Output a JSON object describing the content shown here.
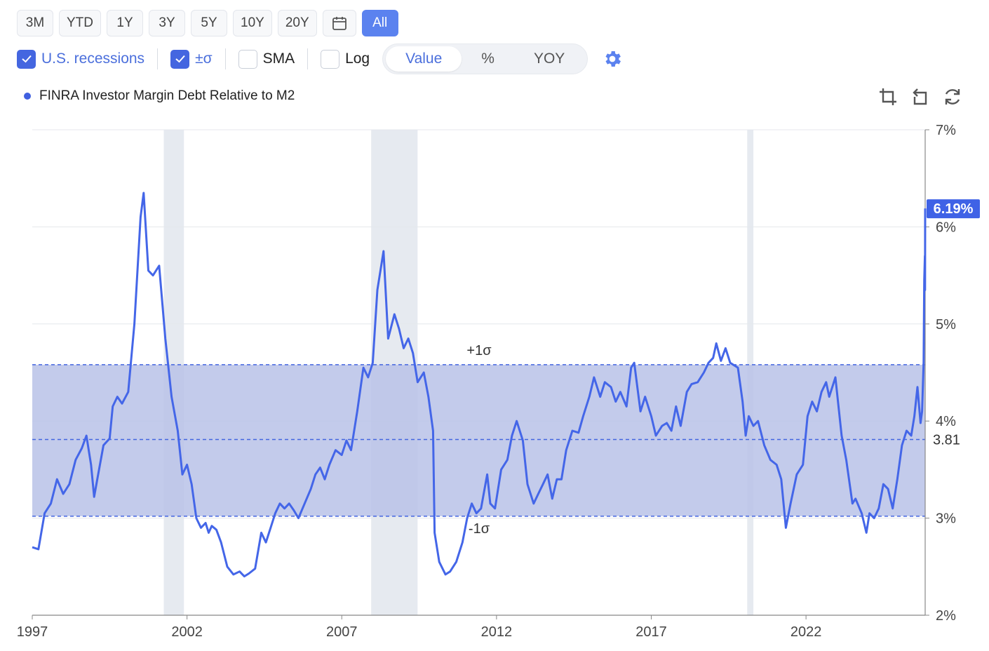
{
  "toolbar": {
    "ranges": [
      "3M",
      "YTD",
      "1Y",
      "3Y",
      "5Y",
      "10Y",
      "20Y"
    ],
    "calendar_icon": "calendar-icon",
    "all_label": "All"
  },
  "options": {
    "recessions_label": "U.S. recessions",
    "sigma_label": "±σ",
    "sma_label": "SMA",
    "log_label": "Log",
    "seg": [
      "Value",
      "%",
      "YOY"
    ],
    "gear_icon": "gear-icon"
  },
  "legend": {
    "label": "FINRA Investor Margin Debt Relative to M2",
    "color": "#4060e0"
  },
  "tools": [
    "crop-icon",
    "undo-icon",
    "refresh-icon"
  ],
  "chart_data": {
    "type": "line",
    "series": [
      {
        "name": "FINRA Investor Margin Debt Relative to M2",
        "color": "#4466e8"
      }
    ],
    "xlim": [
      1997.0,
      2025.85
    ],
    "ylim": [
      2,
      7
    ],
    "x_ticks": [
      "1997",
      "2002",
      "2007",
      "2012",
      "2017",
      "2022"
    ],
    "y_ticks": [
      "2%",
      "3%",
      "4%",
      "5%",
      "6%",
      "7%"
    ],
    "mean": 3.81,
    "mean_label": "3.81",
    "plus_sigma": 4.58,
    "minus_sigma": 3.02,
    "plus_sigma_label": "+1σ",
    "minus_sigma_label": "-1σ",
    "last_value_label": "6.19%",
    "recessions": [
      [
        2001.25,
        2001.9
      ],
      [
        2007.95,
        2009.45
      ],
      [
        2020.1,
        2020.3
      ]
    ],
    "points": [
      [
        1997.0,
        2.7
      ],
      [
        1997.2,
        2.68
      ],
      [
        1997.4,
        3.05
      ],
      [
        1997.6,
        3.15
      ],
      [
        1997.8,
        3.4
      ],
      [
        1998.0,
        3.25
      ],
      [
        1998.2,
        3.35
      ],
      [
        1998.4,
        3.6
      ],
      [
        1998.6,
        3.72
      ],
      [
        1998.75,
        3.85
      ],
      [
        1998.9,
        3.55
      ],
      [
        1999.0,
        3.22
      ],
      [
        1999.1,
        3.4
      ],
      [
        1999.3,
        3.75
      ],
      [
        1999.5,
        3.82
      ],
      [
        1999.6,
        4.15
      ],
      [
        1999.75,
        4.25
      ],
      [
        1999.9,
        4.18
      ],
      [
        2000.1,
        4.3
      ],
      [
        2000.3,
        5.0
      ],
      [
        2000.5,
        6.1
      ],
      [
        2000.6,
        6.35
      ],
      [
        2000.75,
        5.55
      ],
      [
        2000.9,
        5.5
      ],
      [
        2001.0,
        5.55
      ],
      [
        2001.1,
        5.6
      ],
      [
        2001.3,
        4.85
      ],
      [
        2001.5,
        4.25
      ],
      [
        2001.7,
        3.9
      ],
      [
        2001.85,
        3.45
      ],
      [
        2002.0,
        3.55
      ],
      [
        2002.15,
        3.35
      ],
      [
        2002.3,
        3.0
      ],
      [
        2002.45,
        2.9
      ],
      [
        2002.6,
        2.95
      ],
      [
        2002.7,
        2.85
      ],
      [
        2002.8,
        2.92
      ],
      [
        2002.95,
        2.88
      ],
      [
        2003.1,
        2.75
      ],
      [
        2003.3,
        2.5
      ],
      [
        2003.5,
        2.42
      ],
      [
        2003.7,
        2.45
      ],
      [
        2003.85,
        2.4
      ],
      [
        2004.0,
        2.43
      ],
      [
        2004.2,
        2.48
      ],
      [
        2004.4,
        2.85
      ],
      [
        2004.55,
        2.75
      ],
      [
        2004.7,
        2.9
      ],
      [
        2004.85,
        3.05
      ],
      [
        2005.0,
        3.15
      ],
      [
        2005.15,
        3.1
      ],
      [
        2005.3,
        3.15
      ],
      [
        2005.45,
        3.08
      ],
      [
        2005.6,
        3.0
      ],
      [
        2005.8,
        3.15
      ],
      [
        2006.0,
        3.3
      ],
      [
        2006.15,
        3.45
      ],
      [
        2006.3,
        3.52
      ],
      [
        2006.45,
        3.4
      ],
      [
        2006.6,
        3.55
      ],
      [
        2006.8,
        3.7
      ],
      [
        2007.0,
        3.65
      ],
      [
        2007.15,
        3.8
      ],
      [
        2007.3,
        3.7
      ],
      [
        2007.5,
        4.1
      ],
      [
        2007.7,
        4.55
      ],
      [
        2007.85,
        4.45
      ],
      [
        2008.0,
        4.6
      ],
      [
        2008.15,
        5.35
      ],
      [
        2008.35,
        5.75
      ],
      [
        2008.5,
        4.85
      ],
      [
        2008.7,
        5.1
      ],
      [
        2008.85,
        4.95
      ],
      [
        2009.0,
        4.75
      ],
      [
        2009.15,
        4.85
      ],
      [
        2009.3,
        4.7
      ],
      [
        2009.45,
        4.4
      ],
      [
        2009.65,
        4.5
      ],
      [
        2009.8,
        4.25
      ],
      [
        2009.95,
        3.9
      ],
      [
        2010.0,
        2.85
      ],
      [
        2010.15,
        2.55
      ],
      [
        2010.35,
        2.42
      ],
      [
        2010.5,
        2.45
      ],
      [
        2010.7,
        2.55
      ],
      [
        2010.9,
        2.75
      ],
      [
        2011.05,
        3.0
      ],
      [
        2011.2,
        3.15
      ],
      [
        2011.35,
        3.05
      ],
      [
        2011.5,
        3.1
      ],
      [
        2011.7,
        3.45
      ],
      [
        2011.8,
        3.15
      ],
      [
        2011.95,
        3.1
      ],
      [
        2012.15,
        3.5
      ],
      [
        2012.35,
        3.6
      ],
      [
        2012.5,
        3.85
      ],
      [
        2012.65,
        4.0
      ],
      [
        2012.85,
        3.8
      ],
      [
        2013.0,
        3.35
      ],
      [
        2013.2,
        3.15
      ],
      [
        2013.35,
        3.25
      ],
      [
        2013.5,
        3.35
      ],
      [
        2013.65,
        3.45
      ],
      [
        2013.8,
        3.2
      ],
      [
        2013.95,
        3.4
      ],
      [
        2014.1,
        3.4
      ],
      [
        2014.25,
        3.7
      ],
      [
        2014.45,
        3.9
      ],
      [
        2014.65,
        3.88
      ],
      [
        2014.8,
        4.05
      ],
      [
        2015.0,
        4.25
      ],
      [
        2015.15,
        4.45
      ],
      [
        2015.35,
        4.25
      ],
      [
        2015.5,
        4.4
      ],
      [
        2015.7,
        4.35
      ],
      [
        2015.85,
        4.2
      ],
      [
        2016.0,
        4.3
      ],
      [
        2016.2,
        4.15
      ],
      [
        2016.35,
        4.55
      ],
      [
        2016.45,
        4.6
      ],
      [
        2016.65,
        4.1
      ],
      [
        2016.8,
        4.25
      ],
      [
        2017.0,
        4.05
      ],
      [
        2017.15,
        3.85
      ],
      [
        2017.35,
        3.95
      ],
      [
        2017.5,
        3.98
      ],
      [
        2017.65,
        3.9
      ],
      [
        2017.8,
        4.15
      ],
      [
        2017.95,
        3.95
      ],
      [
        2018.15,
        4.3
      ],
      [
        2018.3,
        4.38
      ],
      [
        2018.5,
        4.4
      ],
      [
        2018.7,
        4.5
      ],
      [
        2018.85,
        4.6
      ],
      [
        2019.0,
        4.65
      ],
      [
        2019.1,
        4.8
      ],
      [
        2019.25,
        4.62
      ],
      [
        2019.4,
        4.75
      ],
      [
        2019.55,
        4.6
      ],
      [
        2019.8,
        4.55
      ],
      [
        2019.95,
        4.2
      ],
      [
        2020.05,
        3.85
      ],
      [
        2020.15,
        4.05
      ],
      [
        2020.3,
        3.95
      ],
      [
        2020.45,
        4.0
      ],
      [
        2020.65,
        3.75
      ],
      [
        2020.85,
        3.6
      ],
      [
        2021.05,
        3.55
      ],
      [
        2021.2,
        3.4
      ],
      [
        2021.35,
        2.9
      ],
      [
        2021.5,
        3.15
      ],
      [
        2021.7,
        3.45
      ],
      [
        2021.9,
        3.55
      ],
      [
        2022.05,
        4.05
      ],
      [
        2022.2,
        4.2
      ],
      [
        2022.35,
        4.1
      ],
      [
        2022.5,
        4.3
      ],
      [
        2022.65,
        4.4
      ],
      [
        2022.75,
        4.25
      ],
      [
        2022.95,
        4.45
      ],
      [
        2023.15,
        3.85
      ],
      [
        2023.3,
        3.6
      ],
      [
        2023.5,
        3.15
      ],
      [
        2023.6,
        3.2
      ],
      [
        2023.8,
        3.05
      ],
      [
        2023.95,
        2.85
      ],
      [
        2024.05,
        3.05
      ],
      [
        2024.2,
        3.0
      ],
      [
        2024.35,
        3.1
      ],
      [
        2024.5,
        3.35
      ],
      [
        2024.65,
        3.3
      ],
      [
        2024.8,
        3.1
      ],
      [
        2024.95,
        3.4
      ],
      [
        2025.1,
        3.75
      ],
      [
        2025.25,
        3.9
      ],
      [
        2025.4,
        3.85
      ],
      [
        2025.5,
        4.05
      ],
      [
        2025.6,
        4.35
      ],
      [
        2025.7,
        3.98
      ],
      [
        2025.75,
        4.1
      ],
      [
        2025.8,
        4.6
      ],
      [
        2025.82,
        5.45
      ],
      [
        2025.84,
        5.7
      ],
      [
        2025.845,
        5.35
      ],
      [
        2025.85,
        6.19
      ]
    ]
  }
}
